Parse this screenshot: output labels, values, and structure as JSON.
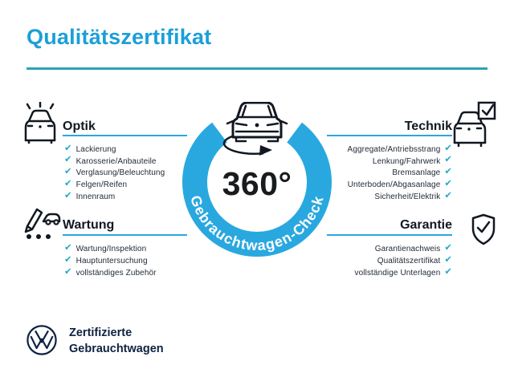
{
  "title": "Qualitätszertifikat",
  "center": {
    "degree_label": "360°",
    "ring_label": "Gebrauchtwagen-Check"
  },
  "sections": {
    "optik": {
      "label": "Optik",
      "items": [
        "Lackierung",
        "Karosserie/Anbauteile",
        "Verglasung/Beleuchtung",
        "Felgen/Reifen",
        "Innenraum"
      ]
    },
    "technik": {
      "label": "Technik",
      "items": [
        "Aggregate/Antriebsstrang",
        "Lenkung/Fahrwerk",
        "Bremsanlage",
        "Unterboden/Abgasanlage",
        "Sicherheit/Elektrik"
      ]
    },
    "wartung": {
      "label": "Wartung",
      "items": [
        "Wartung/Inspektion",
        "Hauptuntersuchung",
        "vollständiges Zubehör"
      ]
    },
    "garantie": {
      "label": "Garantie",
      "items": [
        "Garantienachweis",
        "Qualitätszertifikat",
        "vollständige Unterlagen"
      ]
    }
  },
  "footer": {
    "line1": "Zertifizierte",
    "line2": "Gebrauchtwagen"
  },
  "icons": {
    "check_glyph": "✔",
    "optik": "car-front-shine-icon",
    "wartung": "pencil-checklist-car-icon",
    "technik": "car-checkbox-icon",
    "garantie": "shield-check-icon",
    "center": "car-rotate-360-icon",
    "brand": "vw-logo"
  },
  "colors": {
    "title_blue": "#1b9fd8",
    "rule_teal": "#2ea3b0",
    "underline_blue": "#2aa7de",
    "ring_blue": "#29a8df",
    "check_teal": "#24a9cb",
    "ink": "#111821",
    "item_ink": "#212b38",
    "navy": "#0e2240"
  }
}
